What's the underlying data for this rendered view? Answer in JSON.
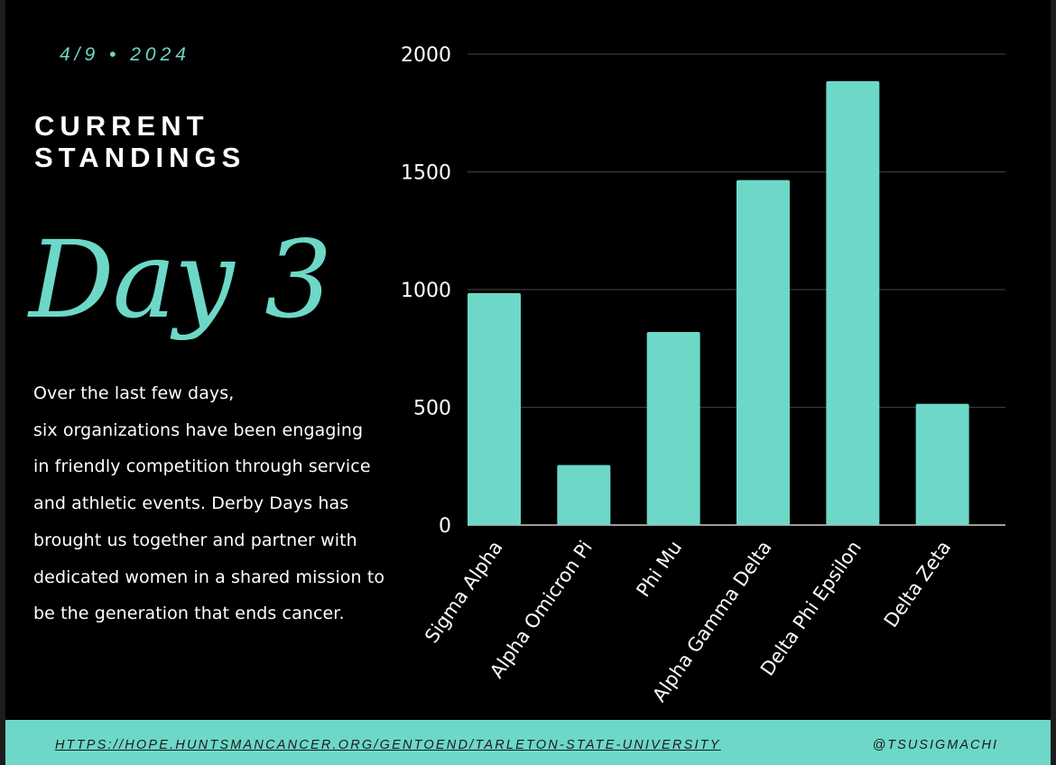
{
  "header": {
    "date": "4/9 • 2024",
    "title_line1": "CURRENT",
    "title_line2": "STANDINGS",
    "day": "Day 3"
  },
  "description": {
    "lines": [
      "Over the last few days,",
      "six organizations have been engaging",
      "in friendly competition through service",
      "and athletic events. Derby Days has",
      "brought us together and partner with",
      "dedicated women in a shared mission to",
      "be the generation that ends cancer."
    ]
  },
  "footer": {
    "link": "HTTPS://HOPE.HUNTSMANCANCER.ORG/GENTOEND/TARLETON-STATE-UNIVERSITY",
    "handle": "@TSUSIGMACHI"
  },
  "colors": {
    "accent": "#6dd8c7",
    "background": "#000000",
    "grid": "#3a3a3a",
    "text": "#ffffff"
  },
  "chart_data": {
    "type": "bar",
    "title": "",
    "xlabel": "",
    "ylabel": "",
    "categories": [
      "Sigma Alpha",
      "Alpha Omicron Pi",
      "Phi Mu",
      "Alpha Gamma Delta",
      "Delta Phi Epsilon",
      "Delta Zeta"
    ],
    "values": [
      985,
      255,
      820,
      1465,
      1885,
      515
    ],
    "ylim": [
      0,
      2000
    ],
    "yticks": [
      "0",
      "500",
      "1000",
      "1500",
      "2000"
    ],
    "grid": true,
    "legend": "none"
  }
}
